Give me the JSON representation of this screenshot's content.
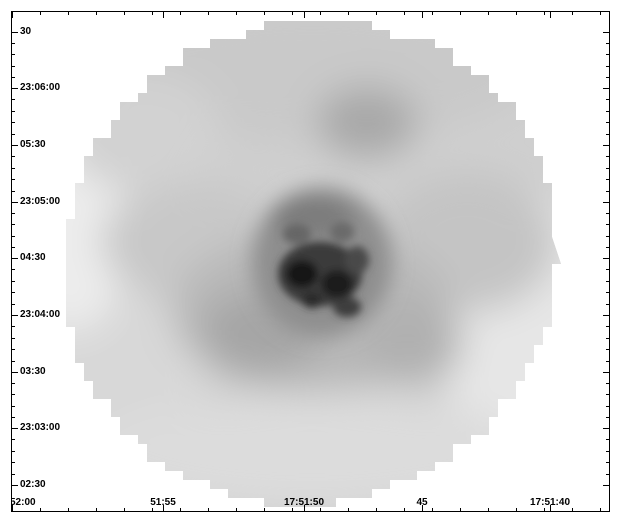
{
  "image": {
    "colormap": "grayscale",
    "background": "#ffffff"
  },
  "axes": {
    "y_tick_labels": [
      "30",
      "23:06:00",
      "05:30",
      "23:05:00",
      "04:30",
      "23:04:00",
      "03:30",
      "23:03:00",
      "02:30"
    ],
    "x_tick_labels": [
      "52:00",
      "51:55",
      "17:51:50",
      "45",
      "17:51:40"
    ]
  }
}
